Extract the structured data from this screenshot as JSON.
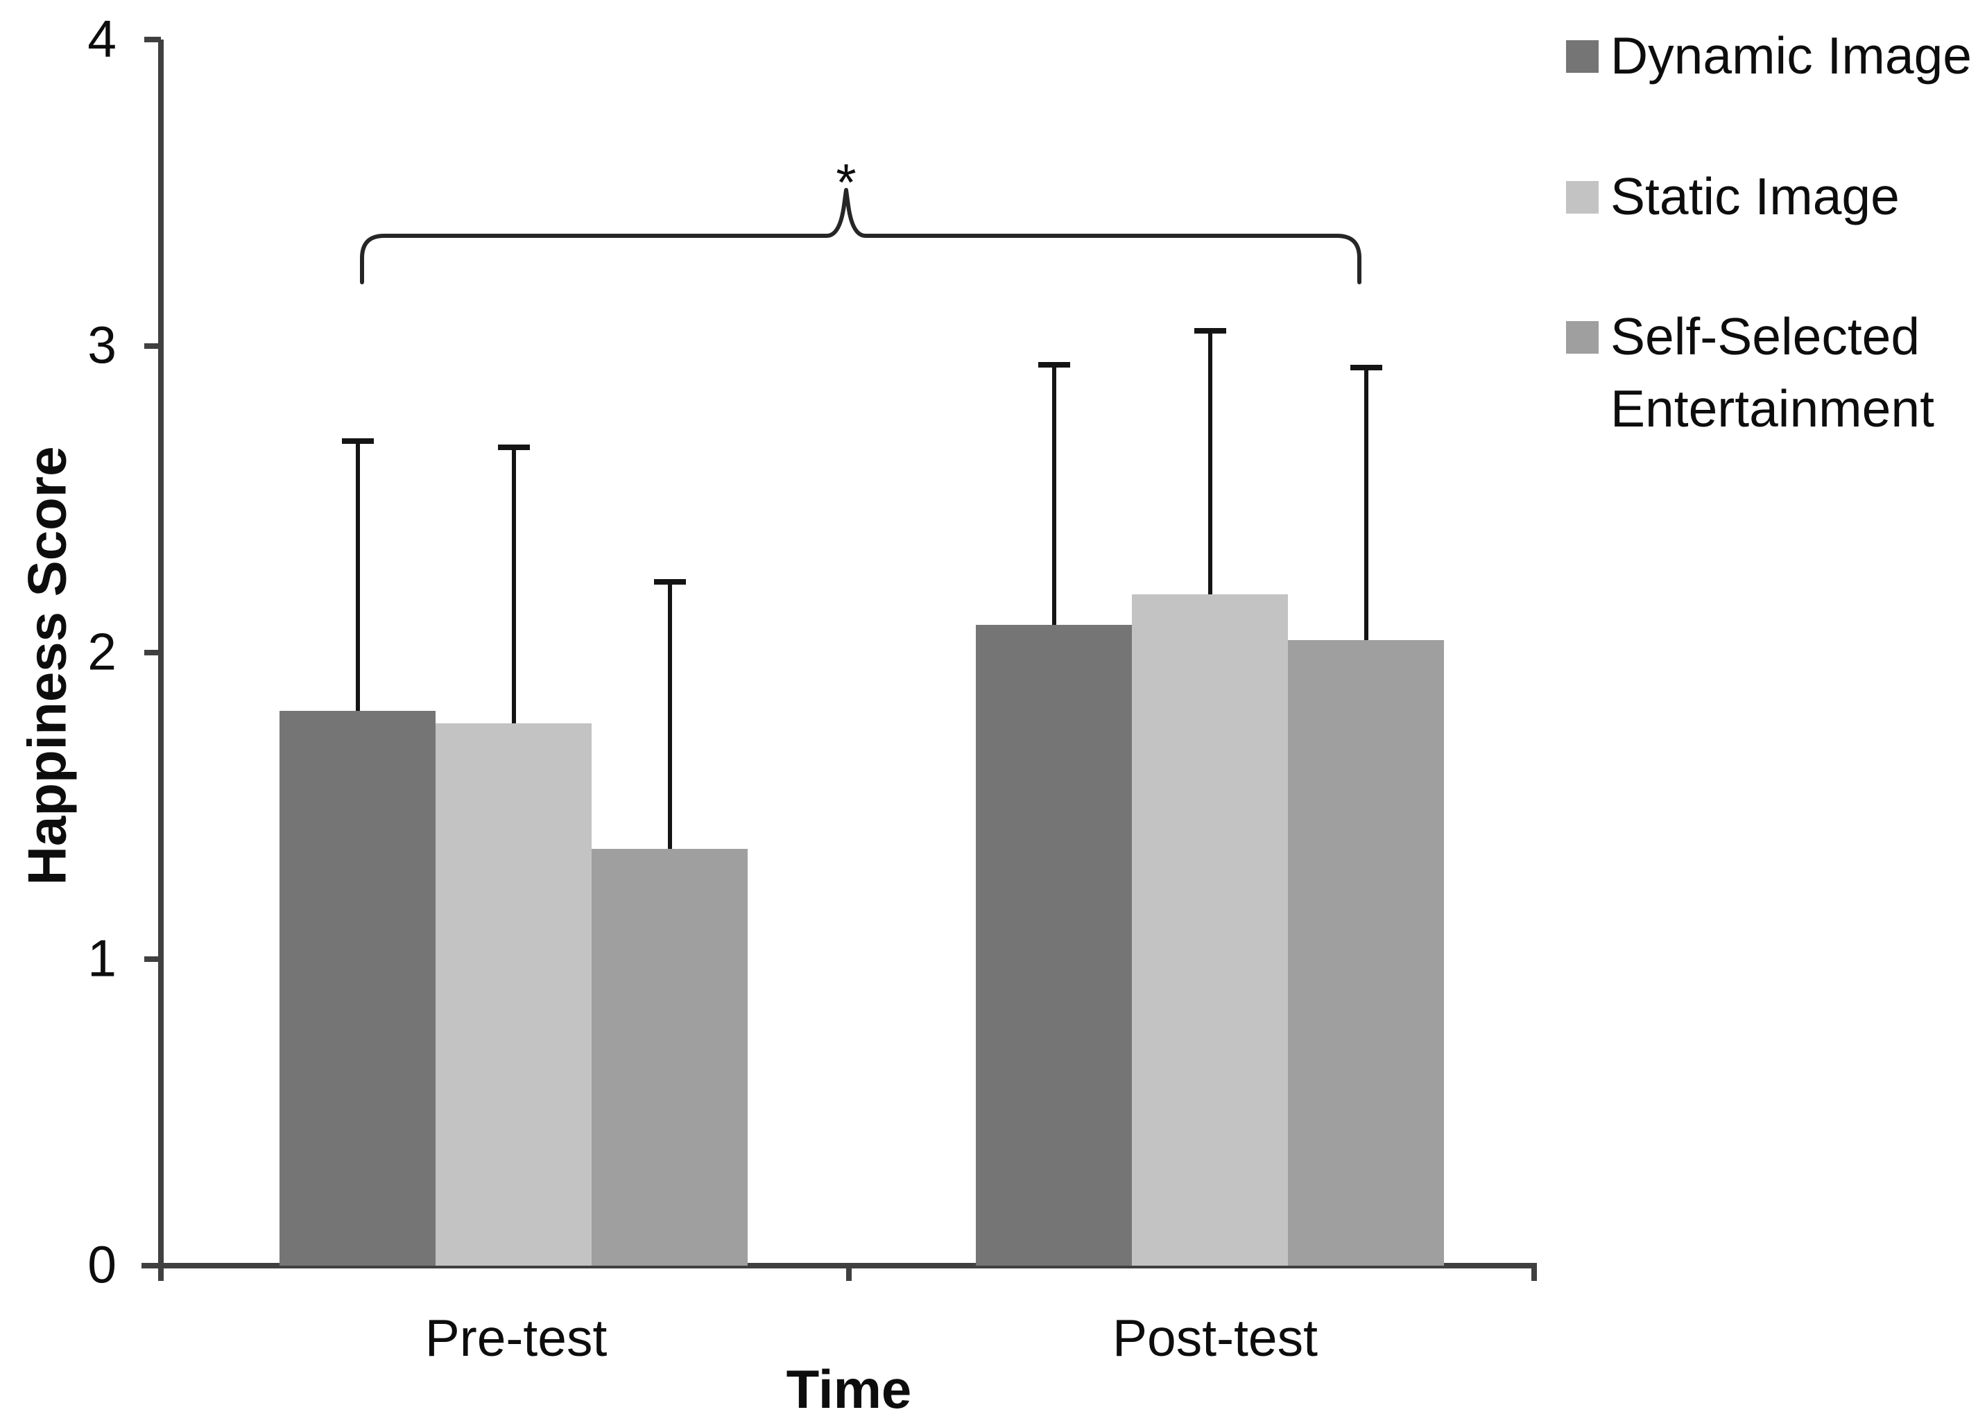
{
  "chart_data": {
    "type": "bar",
    "categories": [
      "Pre-test",
      "Post-test"
    ],
    "series": [
      {
        "name": "Dynamic Image",
        "color": "#757575",
        "values": [
          1.81,
          2.09
        ],
        "error_upper": [
          0.88,
          0.85
        ]
      },
      {
        "name": "Static Image",
        "color": "#c3c3c3",
        "values": [
          1.77,
          2.19
        ],
        "error_upper": [
          0.9,
          0.86
        ]
      },
      {
        "name": "Self-Selected Entertainment",
        "color": "#9f9f9f",
        "values": [
          1.36,
          2.04
        ],
        "error_upper": [
          0.87,
          0.89
        ]
      }
    ],
    "title": "",
    "xlabel": "Time",
    "ylabel": "Happiness Score",
    "ylim": [
      0,
      4
    ],
    "yticks": [
      0,
      1,
      2,
      3,
      4
    ],
    "grid": false,
    "legend_position": "top-right",
    "error_bars": "upper-only",
    "annotation": {
      "type": "significance_bracket",
      "label": "*",
      "from": "Pre-test",
      "to": "Post-test"
    }
  }
}
